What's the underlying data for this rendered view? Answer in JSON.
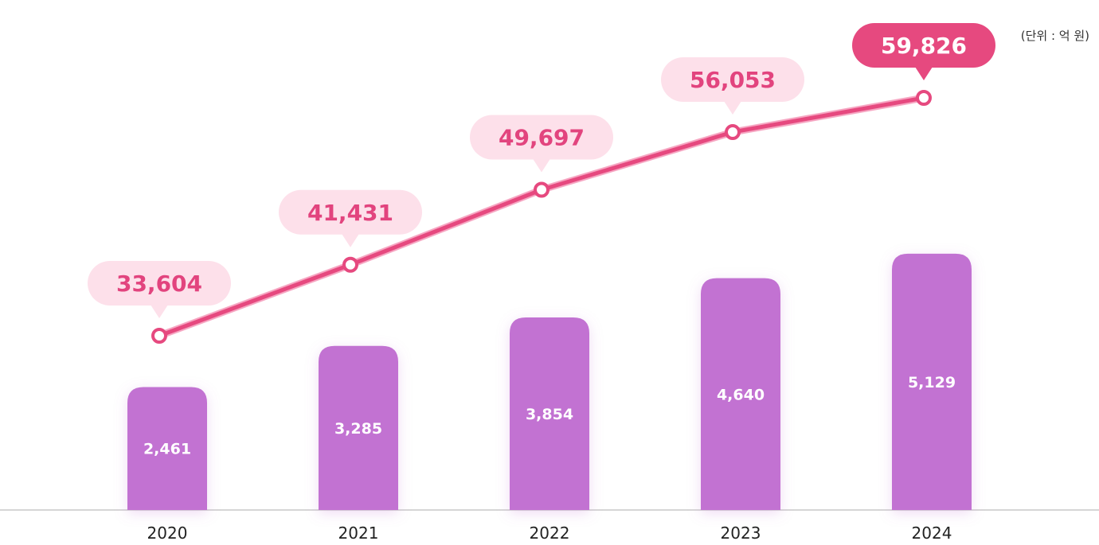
{
  "unit_label": "(단위 : 억 원)",
  "colors": {
    "bar": "#c272d2",
    "line": "#e6497f",
    "bubble": "#fde0ea",
    "bubble_text": "#e2447e",
    "bubble_highlight": "#e6497f",
    "bubble_highlight_text": "#ffffff",
    "axis": "#d6d6d6"
  },
  "chart_data": {
    "type": "bar",
    "categories": [
      "2020",
      "2021",
      "2022",
      "2023",
      "2024"
    ],
    "series": [
      {
        "type": "bar",
        "values": [
          2461,
          3285,
          3854,
          4640,
          5129
        ],
        "labels": [
          "2,461",
          "3,285",
          "3,854",
          "4,640",
          "5,129"
        ]
      },
      {
        "type": "line",
        "values": [
          33604,
          41431,
          49697,
          56053,
          59826
        ],
        "labels": [
          "33,604",
          "41,431",
          "49,697",
          "56,053",
          "59,826"
        ],
        "highlight_last": true
      }
    ],
    "title": "",
    "xlabel": "",
    "ylabel": "",
    "grid": false,
    "legend": "none"
  }
}
